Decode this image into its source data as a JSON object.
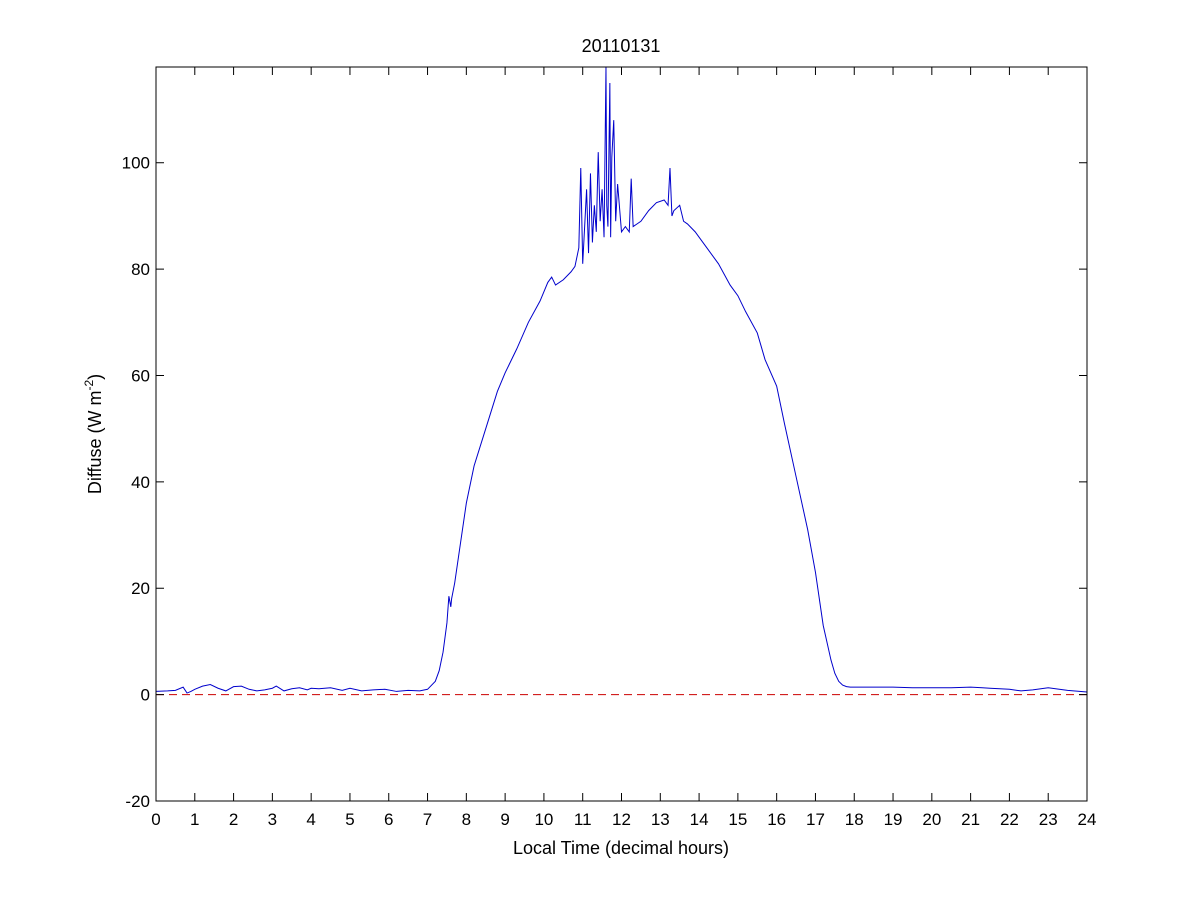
{
  "chart_data": {
    "type": "line",
    "title": "20110131",
    "xlabel": "Local Time (decimal hours)",
    "ylabel": {
      "base": "Diffuse (W m",
      "superscript": "-2",
      "close": ")"
    },
    "xlim": [
      0,
      24
    ],
    "ylim": [
      -20,
      118
    ],
    "x_ticks": [
      0,
      1,
      2,
      3,
      4,
      5,
      6,
      7,
      8,
      9,
      10,
      11,
      12,
      13,
      14,
      15,
      16,
      17,
      18,
      19,
      20,
      21,
      22,
      23,
      24
    ],
    "y_ticks": [
      -20,
      0,
      20,
      40,
      60,
      80,
      100
    ],
    "grid": false,
    "legend": "none",
    "series": [
      {
        "color": "#0000cc",
        "style": "solid",
        "x": [
          0,
          0.3,
          0.5,
          0.7,
          0.8,
          0.9,
          1.0,
          1.2,
          1.4,
          1.6,
          1.8,
          2.0,
          2.2,
          2.4,
          2.6,
          2.8,
          3.0,
          3.1,
          3.3,
          3.5,
          3.7,
          3.9,
          4.0,
          4.2,
          4.5,
          4.8,
          5.0,
          5.3,
          5.6,
          5.9,
          6.2,
          6.5,
          6.8,
          7.0,
          7.2,
          7.3,
          7.4,
          7.5,
          7.55,
          7.6,
          7.62,
          7.7,
          7.8,
          8.0,
          8.2,
          8.5,
          8.8,
          9.0,
          9.3,
          9.6,
          9.9,
          10.1,
          10.2,
          10.3,
          10.5,
          10.7,
          10.8,
          10.9,
          10.95,
          11.0,
          11.1,
          11.15,
          11.2,
          11.25,
          11.3,
          11.35,
          11.4,
          11.45,
          11.5,
          11.55,
          11.6,
          11.62,
          11.65,
          11.7,
          11.72,
          11.75,
          11.8,
          11.85,
          11.9,
          12.0,
          12.1,
          12.2,
          12.25,
          12.3,
          12.5,
          12.7,
          12.9,
          13.1,
          13.2,
          13.25,
          13.3,
          13.35,
          13.5,
          13.6,
          13.7,
          13.9,
          14.0,
          14.2,
          14.5,
          14.8,
          15.0,
          15.2,
          15.5,
          15.7,
          16.0,
          16.2,
          16.5,
          16.8,
          17.0,
          17.2,
          17.4,
          17.5,
          17.6,
          17.7,
          17.8,
          17.9,
          18.0,
          18.5,
          19.0,
          19.5,
          20.0,
          20.5,
          21.0,
          21.3,
          21.5,
          22.0,
          22.3,
          22.6,
          23.0,
          23.5,
          24.0
        ],
        "y": [
          0.6,
          0.7,
          0.8,
          1.4,
          0.3,
          0.6,
          1.0,
          1.6,
          1.9,
          1.2,
          0.7,
          1.5,
          1.6,
          1.0,
          0.7,
          0.9,
          1.2,
          1.6,
          0.7,
          1.1,
          1.3,
          0.9,
          1.2,
          1.1,
          1.3,
          0.8,
          1.2,
          0.7,
          0.9,
          1.0,
          0.6,
          0.8,
          0.7,
          1.0,
          2.5,
          4.5,
          8.0,
          13.5,
          18.5,
          16.5,
          18.0,
          21.0,
          26.0,
          36.0,
          43.0,
          50.0,
          57.0,
          60.5,
          65.0,
          70.0,
          74.0,
          77.5,
          78.5,
          77.0,
          78.0,
          79.5,
          80.5,
          84.0,
          99.0,
          81.0,
          95.0,
          83.0,
          98.0,
          85.0,
          92.0,
          87.0,
          102.0,
          89.0,
          95.0,
          86.0,
          118.0,
          92.0,
          88.0,
          115.0,
          86.0,
          101.0,
          108.0,
          89.0,
          96.0,
          87.0,
          88.0,
          87.0,
          97.0,
          88.0,
          89.0,
          91.0,
          92.5,
          93.0,
          92.0,
          99.0,
          90.0,
          91.0,
          92.0,
          89.0,
          88.5,
          87.0,
          86.0,
          84.0,
          81.0,
          77.0,
          75.0,
          72.0,
          68.0,
          63.0,
          58.0,
          51.0,
          41.0,
          31.0,
          23.0,
          13.0,
          6.5,
          4.0,
          2.5,
          1.8,
          1.5,
          1.4,
          1.4,
          1.4,
          1.4,
          1.3,
          1.3,
          1.3,
          1.4,
          1.3,
          1.2,
          1.0,
          0.7,
          0.9,
          1.3,
          0.8,
          0.5
        ]
      },
      {
        "color": "#cc0000",
        "style": "dashed",
        "x": [
          0,
          24
        ],
        "y": [
          0,
          0
        ]
      }
    ]
  }
}
